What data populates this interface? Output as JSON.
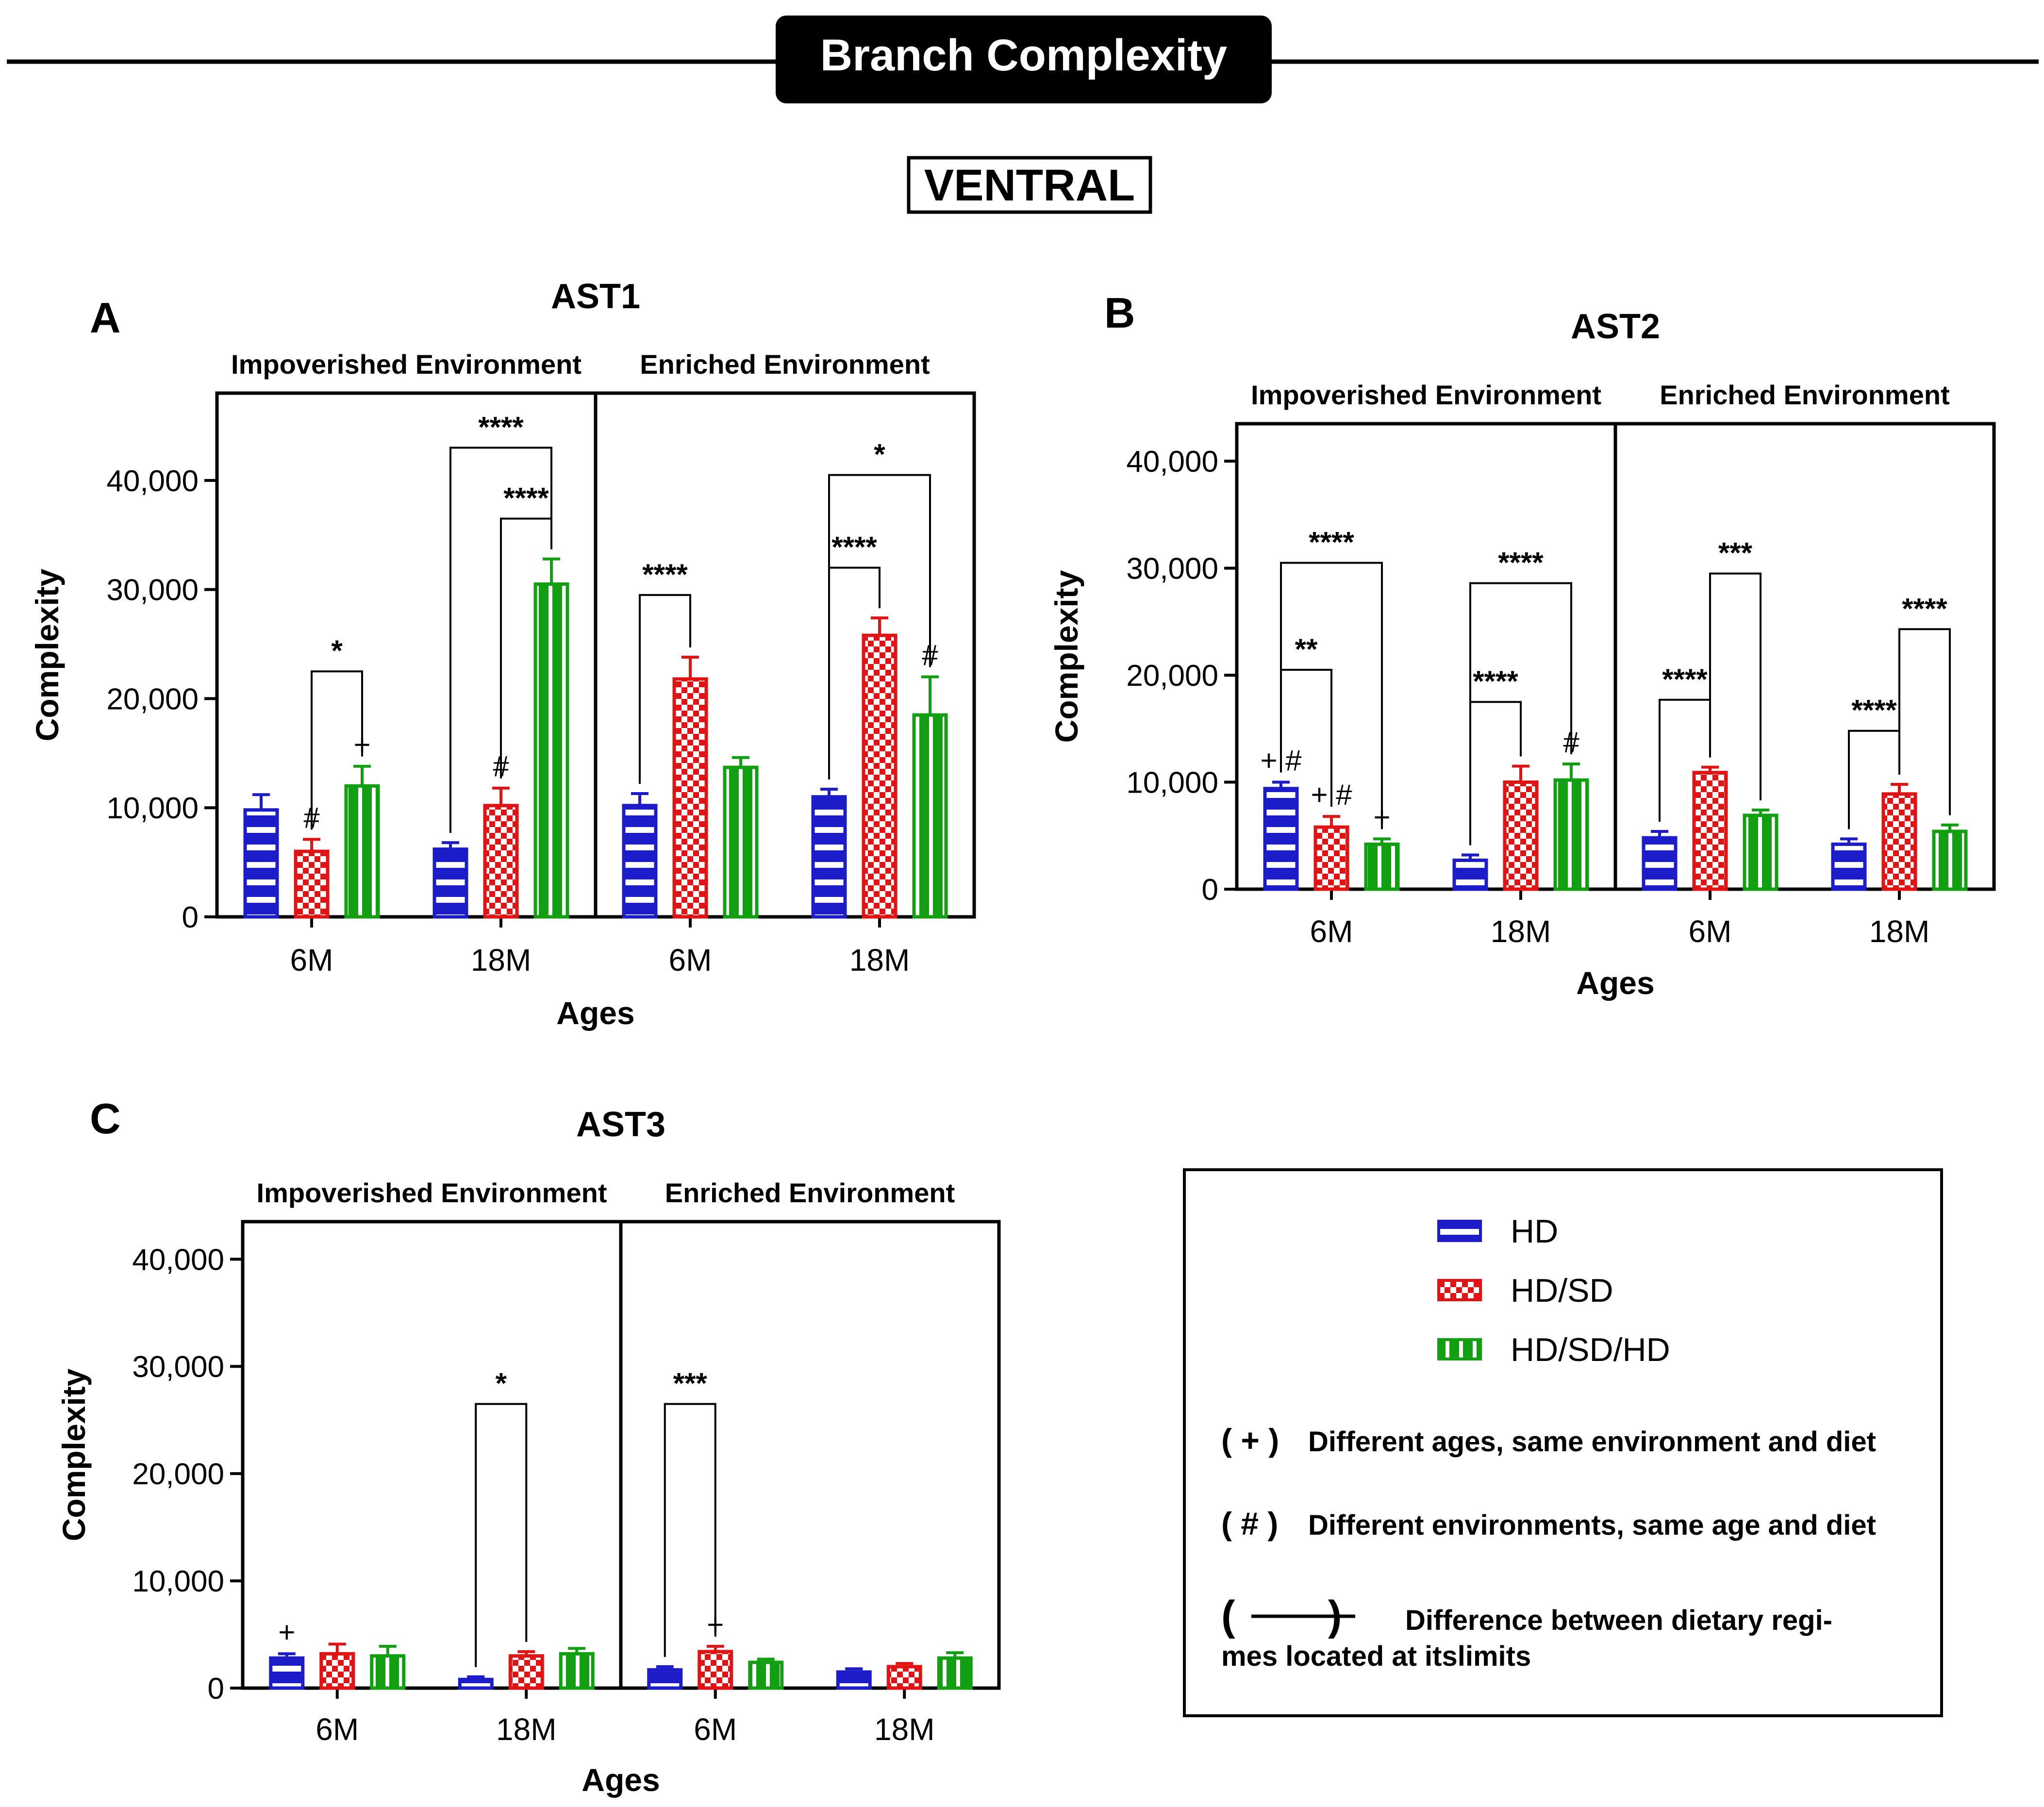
{
  "header": {
    "title": "Branch Complexity",
    "region": "VENTRAL"
  },
  "colors": {
    "hd": "#1c1cc8",
    "hdsd": "#e01414",
    "hdsdhd": "#12a012",
    "ink": "#000000"
  },
  "legend": {
    "series": [
      {
        "label": "HD",
        "pattern": "stripe-h"
      },
      {
        "label": "HD/SD",
        "pattern": "checker"
      },
      {
        "label": "HD/SD/HD",
        "pattern": "stripe-v"
      }
    ],
    "notes": [
      {
        "symbol": "( + )",
        "text": "Different ages, same environment and diet"
      },
      {
        "symbol": "( # )",
        "text": "Different environments, same age and diet"
      },
      {
        "symbol": "(        )",
        "text": "Difference between dietary regi-",
        "text2": "mes located at itslimits"
      }
    ]
  },
  "chart_data": [
    {
      "panel": "A",
      "title": "AST1",
      "type": "bar",
      "xlabel": "Ages",
      "ylabel": "Complexity",
      "ylim": [
        0,
        48000
      ],
      "yticks": [
        0,
        10000,
        20000,
        30000,
        40000
      ],
      "ytick_labels": [
        "0",
        "10,000",
        "20,000",
        "30,000",
        "40,000"
      ],
      "environments": [
        "Impoverished Environment",
        "Enriched Environment"
      ],
      "categories": [
        "6M",
        "18M",
        "6M",
        "18M"
      ],
      "series": [
        {
          "name": "HD",
          "values": [
            9800,
            6200,
            10200,
            11000
          ],
          "errors": [
            1400,
            600,
            1100,
            700
          ],
          "marks": [
            "",
            "",
            "",
            ""
          ]
        },
        {
          "name": "HD/SD",
          "values": [
            6000,
            10200,
            21800,
            25800
          ],
          "errors": [
            1100,
            1600,
            2000,
            1600
          ],
          "marks": [
            "#",
            "#",
            "",
            ""
          ]
        },
        {
          "name": "HD/SD/HD",
          "values": [
            12000,
            30500,
            13700,
            18500
          ],
          "errors": [
            1800,
            2300,
            900,
            3500
          ],
          "marks": [
            "+",
            "",
            "",
            "#"
          ]
        }
      ],
      "comparisons": [
        {
          "group": 0,
          "from": 1,
          "to": 2,
          "y": 22500,
          "label": "*"
        },
        {
          "group": 1,
          "from": 1,
          "to": 2,
          "y": 36500,
          "label": "****"
        },
        {
          "group": 1,
          "from": 0,
          "to": 2,
          "y": 43000,
          "label": "****"
        },
        {
          "group": 2,
          "from": 0,
          "to": 1,
          "y": 29500,
          "label": "****"
        },
        {
          "group": 3,
          "from": 0,
          "to": 1,
          "y": 32000,
          "label": "****"
        },
        {
          "group": 3,
          "from": 0,
          "to": 2,
          "y": 40500,
          "label": "*"
        }
      ]
    },
    {
      "panel": "B",
      "title": "AST2",
      "type": "bar",
      "xlabel": "Ages",
      "ylabel": "Complexity",
      "ylim": [
        0,
        43500
      ],
      "yticks": [
        0,
        10000,
        20000,
        30000,
        40000
      ],
      "ytick_labels": [
        "0",
        "10,000",
        "20,000",
        "30,000",
        "40,000"
      ],
      "environments": [
        "Impoverished Environment",
        "Enriched Environment"
      ],
      "categories": [
        "6M",
        "18M",
        "6M",
        "18M"
      ],
      "series": [
        {
          "name": "HD",
          "values": [
            9400,
            2700,
            4800,
            4200
          ],
          "errors": [
            600,
            500,
            600,
            500
          ],
          "marks": [
            "+ #",
            "",
            "",
            ""
          ]
        },
        {
          "name": "HD/SD",
          "values": [
            5800,
            10000,
            10900,
            8900
          ],
          "errors": [
            1000,
            1500,
            500,
            900
          ],
          "marks": [
            "+ #",
            "",
            "",
            ""
          ]
        },
        {
          "name": "HD/SD/HD",
          "values": [
            4200,
            10200,
            6900,
            5400
          ],
          "errors": [
            500,
            1500,
            500,
            600
          ],
          "marks": [
            "+",
            "#",
            "",
            ""
          ]
        }
      ],
      "comparisons": [
        {
          "group": 0,
          "from": 0,
          "to": 1,
          "y": 20500,
          "label": "**"
        },
        {
          "group": 0,
          "from": 0,
          "to": 2,
          "y": 30500,
          "label": "****"
        },
        {
          "group": 1,
          "from": 0,
          "to": 1,
          "y": 17500,
          "label": "****"
        },
        {
          "group": 1,
          "from": 0,
          "to": 2,
          "y": 28600,
          "label": "****"
        },
        {
          "group": 2,
          "from": 0,
          "to": 1,
          "y": 17700,
          "label": "****"
        },
        {
          "group": 2,
          "from": 1,
          "to": 2,
          "y": 29500,
          "label": "***"
        },
        {
          "group": 3,
          "from": 0,
          "to": 1,
          "y": 14800,
          "label": "****"
        },
        {
          "group": 3,
          "from": 1,
          "to": 2,
          "y": 24300,
          "label": "****"
        }
      ]
    },
    {
      "panel": "C",
      "title": "AST3",
      "type": "bar",
      "xlabel": "Ages",
      "ylabel": "Complexity",
      "ylim": [
        0,
        43500
      ],
      "yticks": [
        0,
        10000,
        20000,
        30000,
        40000
      ],
      "ytick_labels": [
        "0",
        "10,000",
        "20,000",
        "30,000",
        "40,000"
      ],
      "environments": [
        "Impoverished Environment",
        "Enriched Environment"
      ],
      "categories": [
        "6M",
        "18M",
        "6M",
        "18M"
      ],
      "series": [
        {
          "name": "HD",
          "values": [
            2800,
            800,
            1700,
            1500
          ],
          "errors": [
            400,
            250,
            300,
            300
          ],
          "marks": [
            "+",
            "",
            "",
            ""
          ]
        },
        {
          "name": "HD/SD",
          "values": [
            3200,
            3000,
            3400,
            2000
          ],
          "errors": [
            900,
            400,
            500,
            300
          ],
          "marks": [
            "",
            "",
            "+",
            ""
          ]
        },
        {
          "name": "HD/SD/HD",
          "values": [
            3000,
            3200,
            2400,
            2800
          ],
          "errors": [
            900,
            500,
            300,
            500
          ],
          "marks": [
            "",
            "",
            "",
            ""
          ]
        }
      ],
      "comparisons": [
        {
          "group": 1,
          "from": 0,
          "to": 1,
          "y": 26500,
          "label": "*"
        },
        {
          "group": 2,
          "from": 0,
          "to": 1,
          "y": 26500,
          "label": "***"
        }
      ]
    }
  ]
}
